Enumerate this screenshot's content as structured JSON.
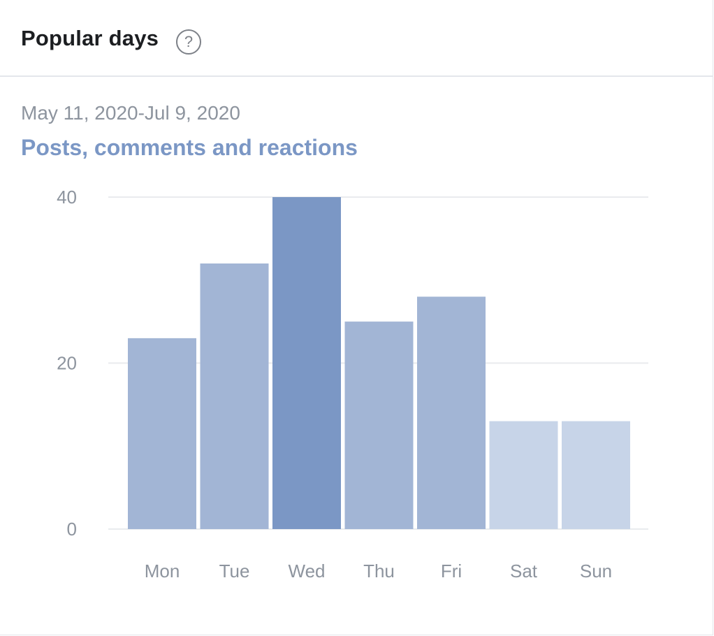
{
  "panel": {
    "title": "Popular days",
    "help_icon": "question-circle-icon",
    "help_glyph": "?",
    "date_range": "May 11, 2020-Jul 9, 2020",
    "metric_label": "Posts, comments and reactions"
  },
  "colors": {
    "bar_weekday": "#a2b5d5",
    "bar_peak": "#7b97c5",
    "bar_weekend": "#c7d4e8",
    "gridline": "#e9ebee",
    "axis_text": "#8d949e",
    "title_text": "#1c1e21",
    "metric_text": "#7b97c5"
  },
  "chart_data": {
    "type": "bar",
    "categories": [
      "Mon",
      "Tue",
      "Wed",
      "Thu",
      "Fri",
      "Sat",
      "Sun"
    ],
    "values": [
      23,
      32,
      40,
      25,
      28,
      13,
      13
    ],
    "yticks": [
      0,
      20,
      40
    ],
    "ylim": [
      0,
      40
    ],
    "grid": true,
    "highlight_category": "Wed",
    "weekend_categories": [
      "Sat",
      "Sun"
    ]
  }
}
